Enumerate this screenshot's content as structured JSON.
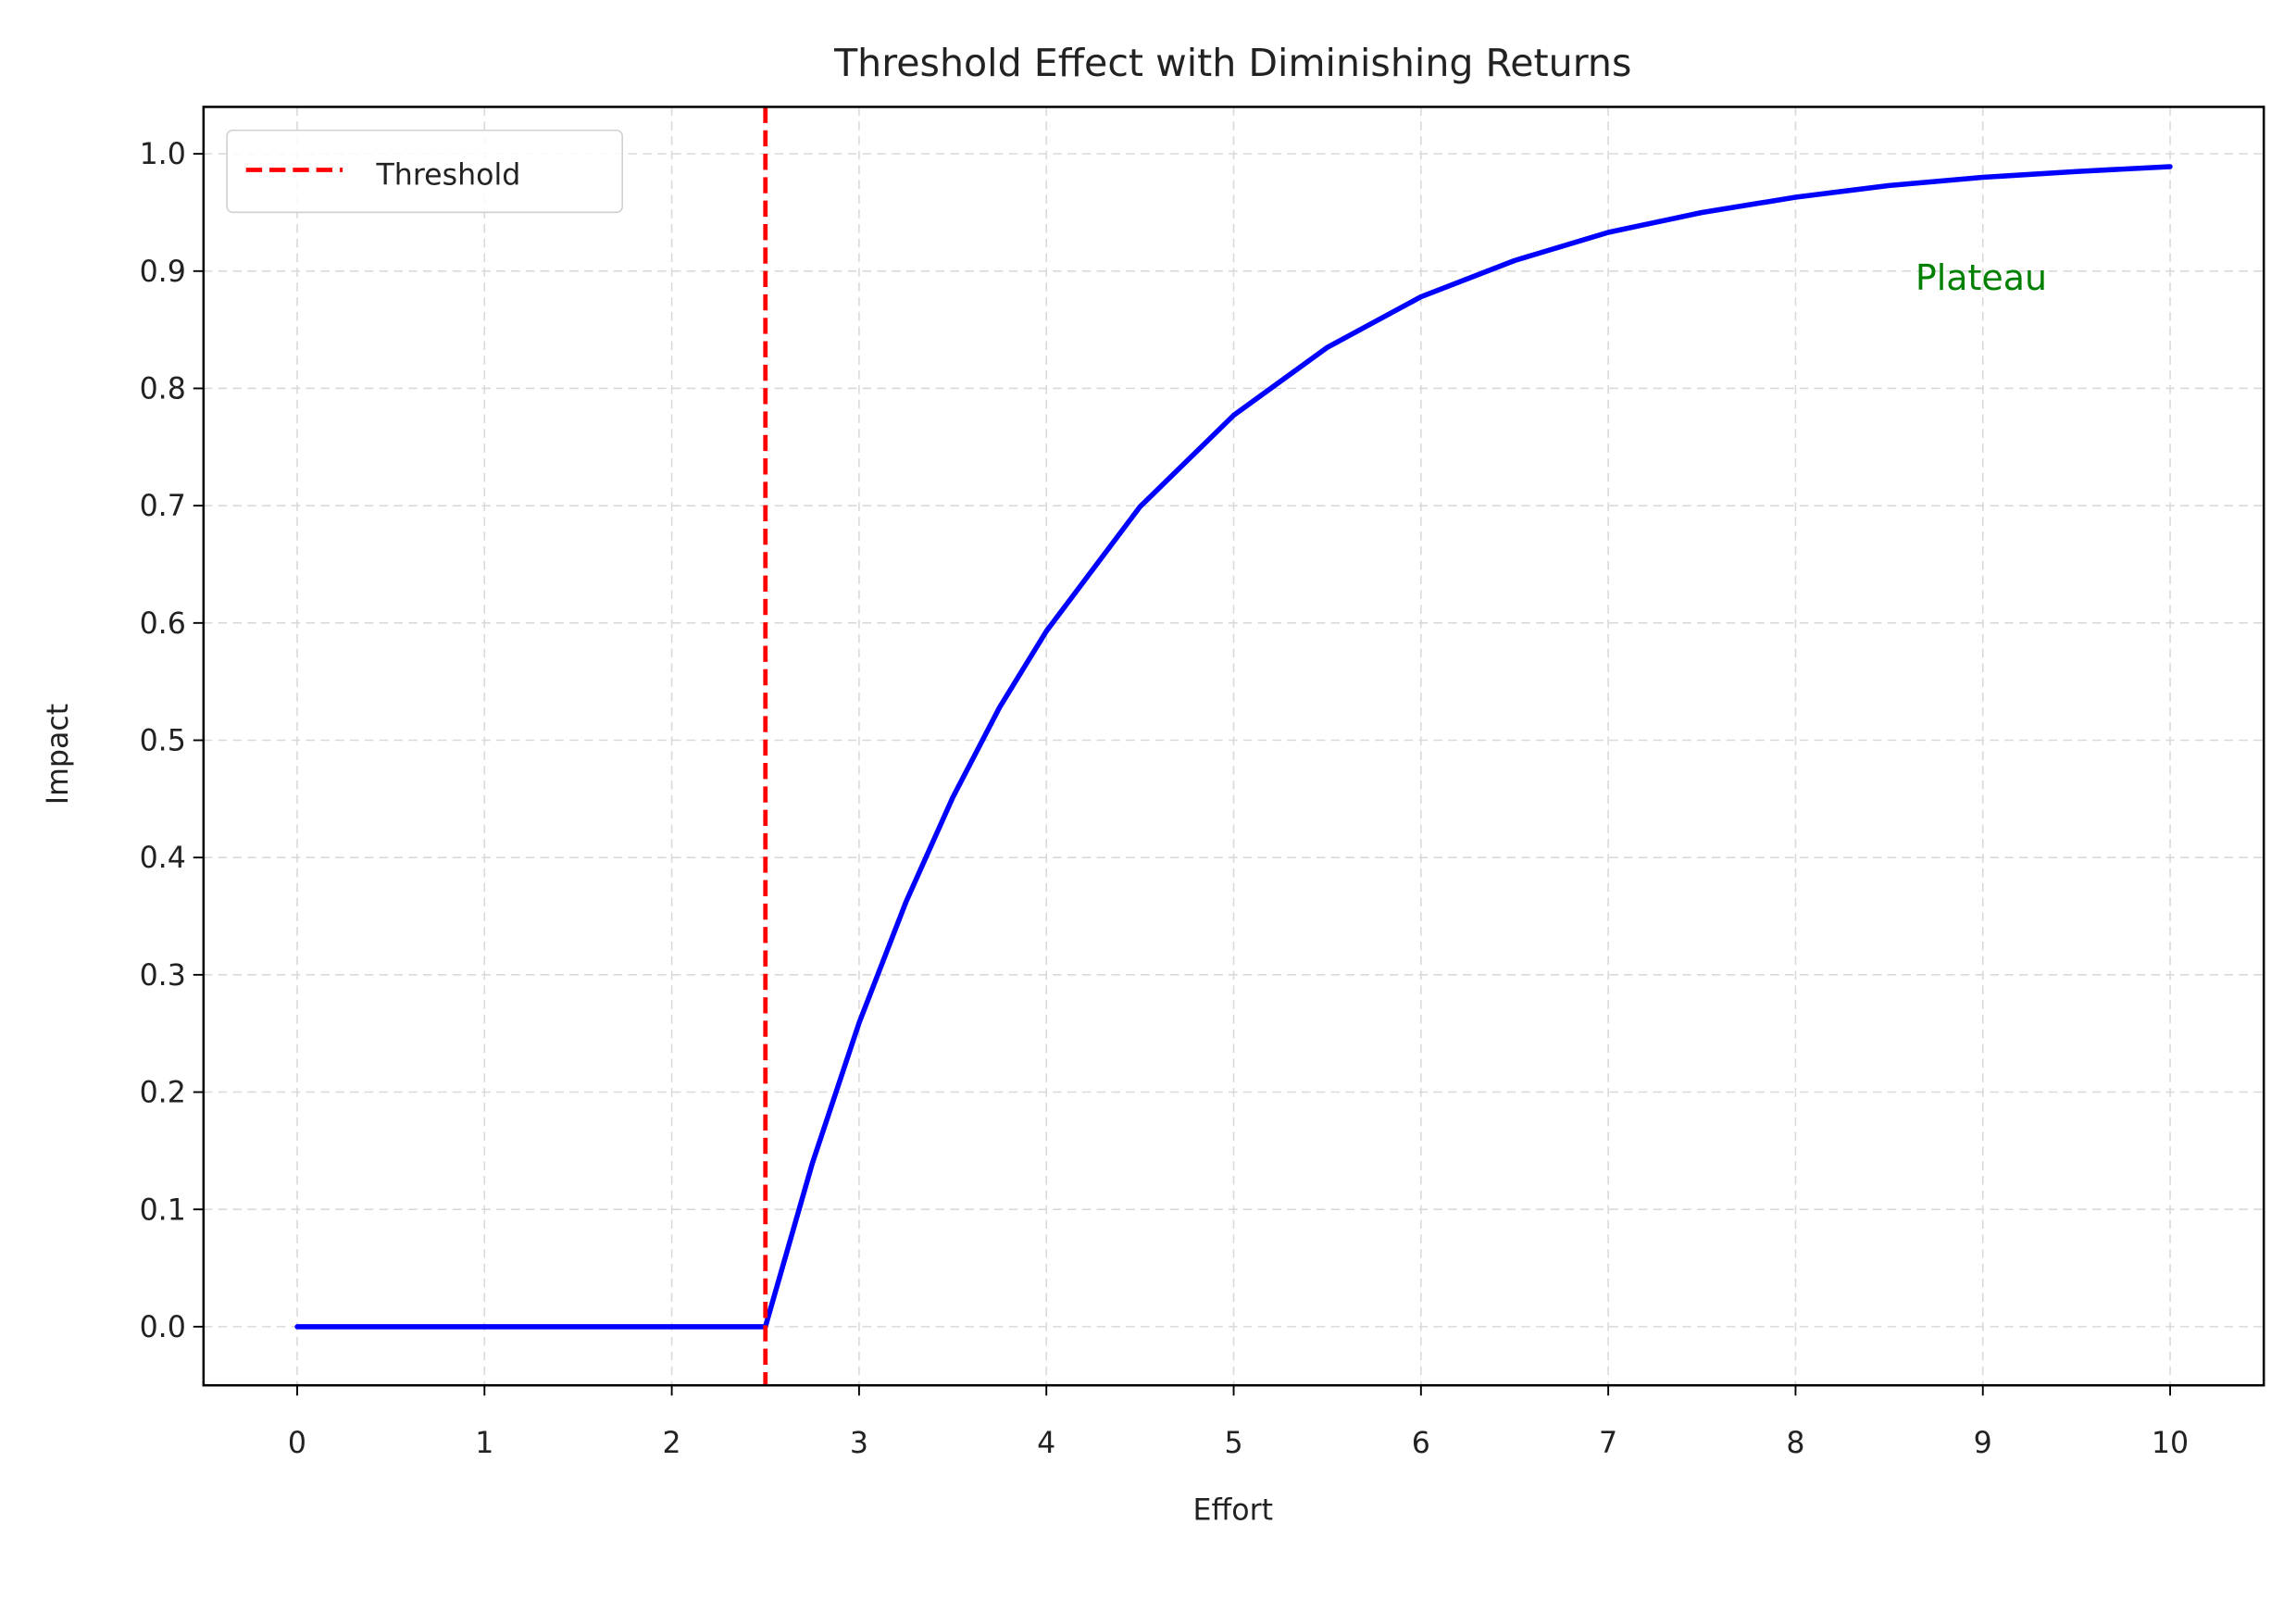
{
  "chart_data": {
    "type": "line",
    "title": "Threshold Effect with Diminishing Returns",
    "xlabel": "Effort",
    "ylabel": "Impact",
    "xlim": [
      -0.5,
      10.5
    ],
    "ylim": [
      -0.05,
      1.04
    ],
    "xticks": [
      "0",
      "1",
      "2",
      "3",
      "4",
      "5",
      "6",
      "7",
      "8",
      "9",
      "10"
    ],
    "yticks": [
      "0.0",
      "0.1",
      "0.2",
      "0.3",
      "0.4",
      "0.5",
      "0.6",
      "0.7",
      "0.8",
      "0.9",
      "1.0"
    ],
    "grid": true,
    "legend_position": "top-left",
    "series": [
      {
        "color": "#0000ff",
        "x": [
          0,
          1,
          2,
          2.5,
          2.75,
          3,
          3.25,
          3.5,
          3.75,
          4,
          4.5,
          5,
          5.5,
          6,
          6.5,
          7,
          7.5,
          8,
          8.5,
          9,
          9.5,
          10
        ],
        "y": [
          0,
          0,
          0,
          0,
          0.139,
          0.259,
          0.362,
          0.451,
          0.528,
          0.593,
          0.699,
          0.777,
          0.835,
          0.878,
          0.909,
          0.933,
          0.95,
          0.963,
          0.973,
          0.98,
          0.985,
          0.989
        ]
      }
    ],
    "vlines": [
      {
        "name": "Threshold",
        "x": 2.5,
        "color": "#ff0000",
        "style": "dashed"
      }
    ],
    "annotations": [
      {
        "text": "Plateau",
        "x": 9,
        "y": 0.9,
        "color": "#008000"
      }
    ]
  }
}
